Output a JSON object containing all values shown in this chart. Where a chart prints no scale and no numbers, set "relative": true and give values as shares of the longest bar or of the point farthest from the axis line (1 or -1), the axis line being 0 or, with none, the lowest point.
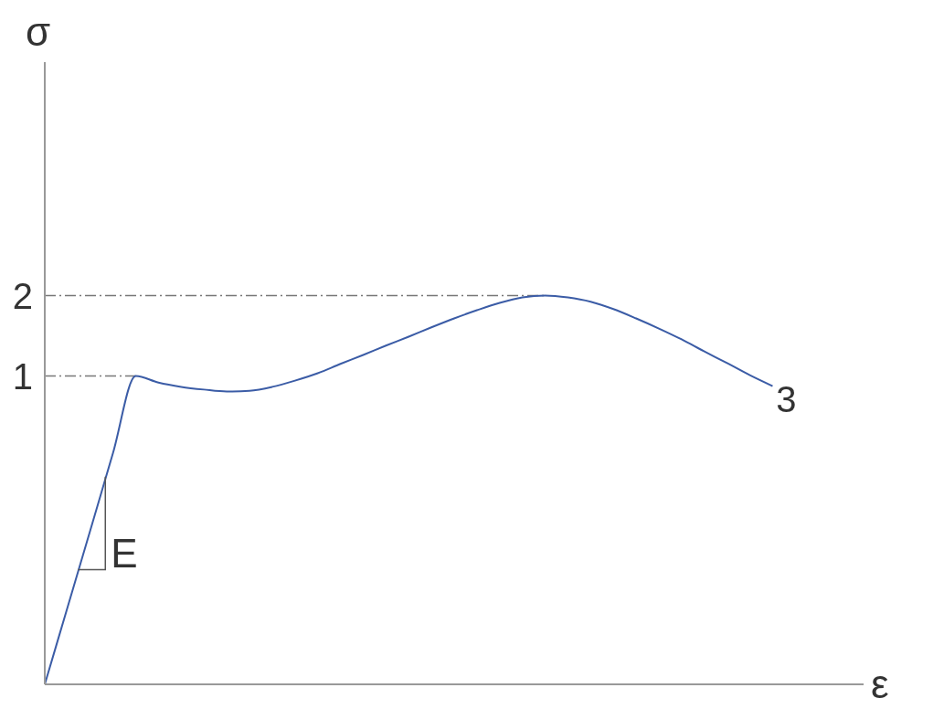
{
  "chart_data": {
    "type": "line",
    "relative": true,
    "xlabel": "ε",
    "categories": [
      null,
      null,
      null,
      null,
      null,
      null,
      null,
      null,
      null,
      null,
      null,
      null,
      null,
      null,
      null,
      null,
      null,
      null,
      null,
      null,
      null,
      null,
      null,
      null,
      null,
      null,
      null,
      null,
      null,
      null,
      null,
      null,
      null,
      null,
      null,
      null,
      null
    ],
    "series": [
      {
        "color": "#3b5ca6",
        "values": [
          0,
          0.198,
          0.396,
          0.595,
          0.793,
          0.776,
          0.765,
          0.758,
          0.753,
          0.755,
          0.765,
          0.781,
          0.8,
          0.824,
          0.847,
          0.871,
          0.894,
          0.918,
          0.941,
          0.962,
          0.981,
          0.995,
          1,
          0.995,
          0.984,
          0.965,
          0.941,
          0.915,
          0.887,
          0.856,
          0.826,
          0.795,
          0.767,
          null,
          null,
          null,
          null
        ]
      }
    ],
    "ref_lines": [
      {
        "axis": "y",
        "value": 0.793,
        "color": "#777777",
        "line_style": "dashed"
      },
      {
        "axis": "y",
        "value": 1,
        "color": "#777777",
        "line_style": "dashed"
      }
    ],
    "annotations": [
      "σ",
      "1",
      "2",
      "3",
      "E"
    ],
    "grid": false,
    "legend": false,
    "marker": "none",
    "line_style": "solid"
  }
}
